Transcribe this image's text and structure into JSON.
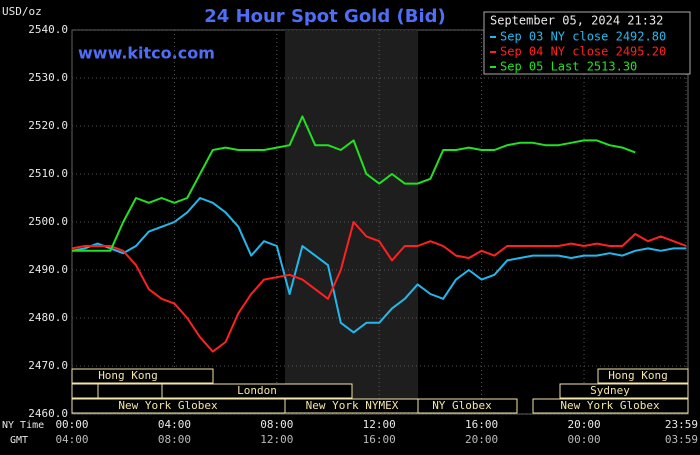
{
  "chart_data": {
    "type": "line",
    "title": "24 Hour Spot Gold (Bid)",
    "unit_label": "USD/oz",
    "watermark": "www.kitco.com",
    "timestamp": "September 05, 2024 21:32",
    "x_row_label": "NY Time",
    "x2_row_label": "GMT",
    "x": [
      0,
      0.5,
      1,
      1.5,
      2,
      2.5,
      3,
      3.5,
      4,
      4.5,
      5,
      5.5,
      6,
      6.5,
      7,
      7.5,
      8,
      8.5,
      9,
      9.5,
      10,
      10.5,
      11,
      11.5,
      12,
      12.5,
      13,
      13.5,
      14,
      14.5,
      15,
      15.5,
      16,
      16.5,
      17,
      17.5,
      18,
      18.5,
      19,
      19.5,
      20,
      20.5,
      21,
      21.5,
      22,
      22.5,
      23,
      23.5,
      24
    ],
    "xlim": [
      0,
      23.983
    ],
    "xticks": [
      {
        "value": 0,
        "label": "00:00"
      },
      {
        "value": 4,
        "label": "04:00"
      },
      {
        "value": 8,
        "label": "08:00"
      },
      {
        "value": 12,
        "label": "12:00"
      },
      {
        "value": 16,
        "label": "16:00"
      },
      {
        "value": 20,
        "label": "20:00"
      },
      {
        "value": 23.983,
        "label": "23:59"
      }
    ],
    "x2ticks": [
      {
        "value": 0,
        "label": "04:00"
      },
      {
        "value": 4,
        "label": "08:00"
      },
      {
        "value": 8,
        "label": "12:00"
      },
      {
        "value": 12,
        "label": "16:00"
      },
      {
        "value": 16,
        "label": "20:00"
      },
      {
        "value": 20,
        "label": "00:00"
      },
      {
        "value": 23.983,
        "label": "03:59"
      }
    ],
    "ylim": [
      2460,
      2540
    ],
    "yticks": [
      {
        "value": 2460,
        "label": "2460.0"
      },
      {
        "value": 2470,
        "label": "2470.0"
      },
      {
        "value": 2480,
        "label": "2480.0"
      },
      {
        "value": 2490,
        "label": "2490.0"
      },
      {
        "value": 2500,
        "label": "2500.0"
      },
      {
        "value": 2510,
        "label": "2510.0"
      },
      {
        "value": 2520,
        "label": "2520.0"
      },
      {
        "value": 2530,
        "label": "2530.0"
      },
      {
        "value": 2540,
        "label": "2540.0"
      }
    ],
    "grid": true,
    "legend": "top-right",
    "sessions": [
      "Hong Kong",
      "London",
      "New York Globex",
      "New York NYMEX",
      "NY Globex",
      "Hong Kong",
      "Sydney",
      "New York Globex"
    ],
    "series": [
      {
        "name": "Sep 03 NY close 2492.80",
        "color": "#22b8ec",
        "values": [
          2494,
          2494.5,
          2495.5,
          2494.5,
          2493.5,
          2495,
          2498,
          2499,
          2500,
          2502,
          2505,
          2504,
          2502,
          2499,
          2493,
          2496,
          2495,
          2485,
          2495,
          2493,
          2491,
          2479,
          2477,
          2479,
          2479,
          2482,
          2484,
          2487,
          2485,
          2484,
          2488,
          2490,
          2488,
          2489,
          2492,
          2492.5,
          2493,
          2493,
          2493,
          2492.5,
          2493,
          2493,
          2493.5,
          2493,
          2494,
          2494.5,
          2494,
          2494.5,
          2494.5
        ]
      },
      {
        "name": "Sep 04 NY close 2495.20",
        "color": "#ff2020",
        "values": [
          2494.5,
          2495,
          2495,
          2495,
          2494,
          2491,
          2486,
          2484,
          2483,
          2480,
          2476,
          2473,
          2475,
          2481,
          2485,
          2488,
          2488.5,
          2489,
          2488,
          2486,
          2484,
          2490,
          2500,
          2497,
          2496,
          2492,
          2495,
          2495,
          2496,
          2495,
          2493,
          2492.5,
          2494,
          2493,
          2495,
          2495,
          2495,
          2495,
          2495,
          2495.5,
          2495,
          2495.5,
          2495,
          2495,
          2497.5,
          2496,
          2497,
          2496,
          2495
        ]
      },
      {
        "name": "Sep 05 Last 2513.30",
        "color": "#22e022",
        "values": [
          2494,
          2494,
          2494,
          2494,
          2500,
          2505,
          2504,
          2505,
          2504,
          2505,
          2510,
          2515,
          2515.5,
          2515,
          2515,
          2515,
          2515.5,
          2516,
          2522,
          2516,
          2516,
          2515,
          2517,
          2510,
          2508,
          2510,
          2508,
          2508,
          2509,
          2515,
          2515,
          2515.5,
          2515,
          2515,
          2516,
          2516.5,
          2516.5,
          2516,
          2516,
          2516.5,
          2517,
          2517,
          2516,
          2515.5,
          2514.5,
          null,
          null,
          null,
          null
        ]
      }
    ]
  }
}
